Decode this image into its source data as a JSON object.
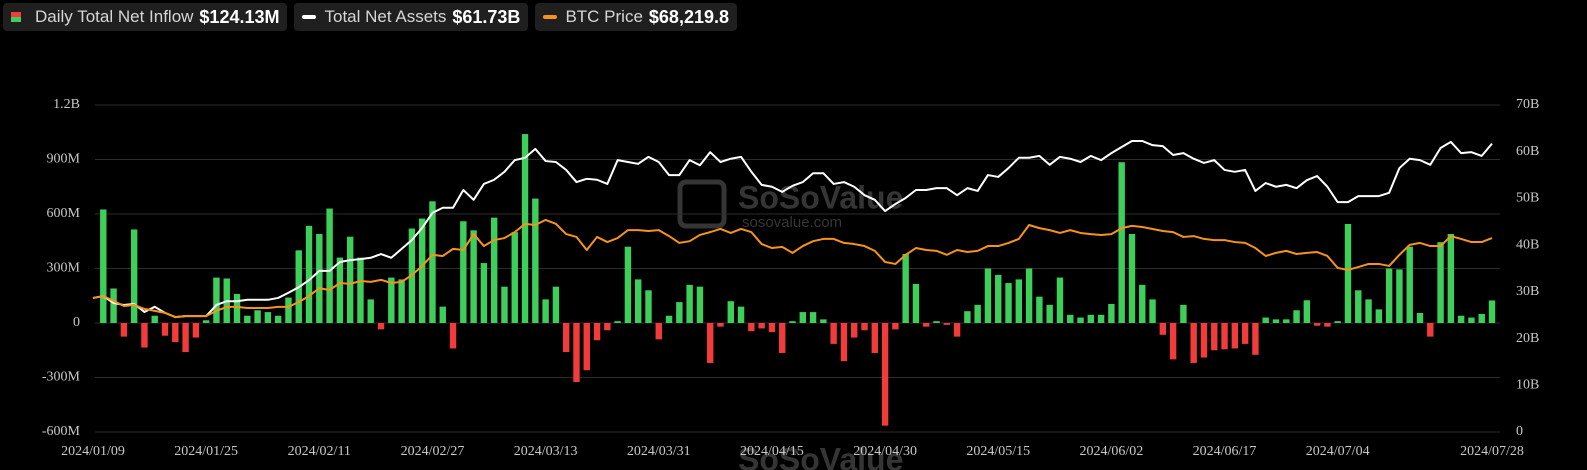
{
  "chart_data": {
    "type": "bar",
    "categories": [
      "2024/01/09",
      null,
      null,
      null,
      null,
      null,
      null,
      null,
      null,
      null,
      null,
      "2024/01/25",
      null,
      null,
      null,
      null,
      null,
      null,
      null,
      null,
      null,
      null,
      "2024/02/11",
      null,
      null,
      null,
      null,
      null,
      null,
      null,
      null,
      null,
      null,
      "2024/02/27",
      null,
      null,
      null,
      null,
      null,
      null,
      null,
      null,
      null,
      null,
      "2024/03/13",
      null,
      null,
      null,
      null,
      null,
      null,
      null,
      null,
      null,
      null,
      "2024/03/31",
      null,
      null,
      null,
      null,
      null,
      null,
      null,
      null,
      null,
      null,
      "2024/04/15",
      null,
      null,
      null,
      null,
      null,
      null,
      null,
      null,
      null,
      null,
      "2024/04/30",
      null,
      null,
      null,
      null,
      null,
      null,
      null,
      null,
      null,
      null,
      "2024/05/15",
      null,
      null,
      null,
      null,
      null,
      null,
      null,
      null,
      null,
      null,
      "2024/06/02",
      null,
      null,
      null,
      null,
      null,
      null,
      null,
      null,
      null,
      null,
      "2024/06/17",
      null,
      null,
      null,
      null,
      null,
      null,
      null,
      null,
      null,
      null,
      "2024/07/04",
      null,
      null,
      null,
      null,
      null,
      null,
      null,
      null,
      null,
      null,
      null,
      null,
      null,
      null,
      "2024/07/28"
    ],
    "series": [
      {
        "name": "Daily Total Net Inflow",
        "latest_label": "$124.13M",
        "type": "bar",
        "color": "#3ecf5b",
        "negative_color": "#f23b3b",
        "values": [
          null,
          625,
          190,
          -75,
          515,
          -135,
          40,
          -70,
          -105,
          -160,
          -80,
          15,
          250,
          245,
          160,
          40,
          70,
          60,
          40,
          140,
          400,
          535,
          490,
          630,
          360,
          475,
          360,
          130,
          -35,
          250,
          240,
          520,
          575,
          670,
          90,
          -140,
          560,
          510,
          330,
          580,
          200,
          500,
          1040,
          685,
          130,
          200,
          -160,
          -325,
          -260,
          -95,
          -40,
          10,
          420,
          240,
          180,
          -90,
          40,
          115,
          210,
          200,
          -220,
          -20,
          120,
          90,
          -45,
          -30,
          -50,
          -165,
          10,
          60,
          60,
          20,
          -115,
          -210,
          -80,
          -40,
          -165,
          -565,
          -35,
          380,
          215,
          -20,
          10,
          -10,
          -75,
          65,
          100,
          300,
          265,
          220,
          240,
          300,
          145,
          100,
          250,
          45,
          30,
          45,
          45,
          105,
          885,
          490,
          210,
          130,
          -65,
          -200,
          100,
          -220,
          -190,
          -150,
          -145,
          -140,
          -115,
          -175,
          30,
          20,
          20,
          70,
          125,
          -15,
          -20,
          10,
          545,
          180,
          130,
          75,
          300,
          295,
          420,
          55,
          -75,
          445,
          490,
          40,
          30,
          50,
          124.13
        ]
      },
      {
        "name": "Total Net Assets",
        "latest_label": "$61.73B",
        "type": "line",
        "axis": "y2",
        "color": "#ffffff",
        "values": [
          28.7,
          29.1,
          27.6,
          27.2,
          27.4,
          25.7,
          26.8,
          25.5,
          24.6,
          24.8,
          24.8,
          24.8,
          27.2,
          28.0,
          28.0,
          28.3,
          28.3,
          28.3,
          28.7,
          29.8,
          31.0,
          32.5,
          34.5,
          34.5,
          36.4,
          36.8,
          37.0,
          37.3,
          38.1,
          37.3,
          39.2,
          41.1,
          43.7,
          46.9,
          48.0,
          48.0,
          51.8,
          49.7,
          53.1,
          54.0,
          55.7,
          58.2,
          58.7,
          60.6,
          58.0,
          57.8,
          56.1,
          53.5,
          54.2,
          54.0,
          53.1,
          58.2,
          57.8,
          57.4,
          58.9,
          57.8,
          55.0,
          55.0,
          58.2,
          57.1,
          59.9,
          57.8,
          58.5,
          58.9,
          55.7,
          52.9,
          52.5,
          51.4,
          52.7,
          53.5,
          55.4,
          55.4,
          53.1,
          53.5,
          52.5,
          50.7,
          49.7,
          47.3,
          48.8,
          50.1,
          51.8,
          51.8,
          52.2,
          52.2,
          50.7,
          52.2,
          51.6,
          55.0,
          54.6,
          56.5,
          58.7,
          58.7,
          59.1,
          57.2,
          58.9,
          58.5,
          57.8,
          59.1,
          58.2,
          59.7,
          61.0,
          62.3,
          62.3,
          61.4,
          61.2,
          59.3,
          59.7,
          58.5,
          57.6,
          58.2,
          56.1,
          55.7,
          56.1,
          51.6,
          53.3,
          52.5,
          52.9,
          52.2,
          53.9,
          54.8,
          52.5,
          49.2,
          49.2,
          50.5,
          50.5,
          50.5,
          51.2,
          56.5,
          58.5,
          58.2,
          57.2,
          60.8,
          62.1,
          59.7,
          59.9,
          59.1,
          61.73
        ]
      },
      {
        "name": "BTC Price",
        "latest_label": "$68,219.8",
        "type": "line",
        "axis": "y3",
        "color": "#f7931a",
        "values": [
          47100,
          47800,
          46100,
          44300,
          44700,
          43300,
          42600,
          41900,
          40400,
          40800,
          40800,
          40800,
          42600,
          44000,
          44000,
          43600,
          43600,
          43600,
          44000,
          44000,
          45700,
          47800,
          50600,
          49900,
          52400,
          52100,
          53100,
          52800,
          53500,
          52400,
          52800,
          55200,
          58400,
          62300,
          61900,
          64400,
          64000,
          69600,
          65400,
          67500,
          68200,
          70300,
          73200,
          72800,
          74600,
          73200,
          69600,
          68600,
          64000,
          68600,
          66800,
          68200,
          71000,
          71000,
          70700,
          71000,
          68900,
          66500,
          67100,
          69300,
          70300,
          71400,
          70000,
          71400,
          70300,
          66100,
          64700,
          65100,
          63000,
          65400,
          67100,
          67900,
          67900,
          66500,
          66100,
          65400,
          63700,
          59800,
          59100,
          62300,
          64700,
          64000,
          63700,
          62300,
          64000,
          63300,
          63700,
          65400,
          65400,
          66500,
          67900,
          72800,
          71700,
          71000,
          70000,
          71000,
          70000,
          69600,
          69300,
          69600,
          71700,
          72500,
          72100,
          71400,
          70700,
          70300,
          68600,
          68900,
          67900,
          67500,
          67500,
          66800,
          66500,
          64700,
          61900,
          63000,
          63700,
          62600,
          63000,
          63300,
          61900,
          57700,
          57000,
          58000,
          59100,
          59100,
          58400,
          62300,
          65800,
          66500,
          65400,
          65400,
          68900,
          67900,
          66800,
          66800,
          68219.8
        ]
      }
    ],
    "ylim": [
      -600,
      1200
    ],
    "yticks": [
      {
        "value": 1200,
        "label": "1.2B"
      },
      {
        "value": 900,
        "label": "900M"
      },
      {
        "value": 600,
        "label": "600M"
      },
      {
        "value": 300,
        "label": "300M"
      },
      0,
      {
        "value": -300,
        "label": "-300M"
      },
      {
        "value": -600,
        "label": "-600M"
      }
    ],
    "y2lim": [
      0,
      70
    ],
    "y2ticks": [
      {
        "value": 70,
        "label": "70B"
      },
      {
        "value": 60,
        "label": "60B"
      },
      {
        "value": 50,
        "label": "50B"
      },
      {
        "value": 40,
        "label": "40B"
      },
      {
        "value": 30,
        "label": "30B"
      },
      {
        "value": 20,
        "label": "20B"
      },
      {
        "value": 10,
        "label": "10B"
      },
      0
    ],
    "y3lim": [
      0,
      115000
    ],
    "grid": true,
    "watermark": {
      "brand": "SoSoValue",
      "site": "sosovalue.com"
    }
  }
}
